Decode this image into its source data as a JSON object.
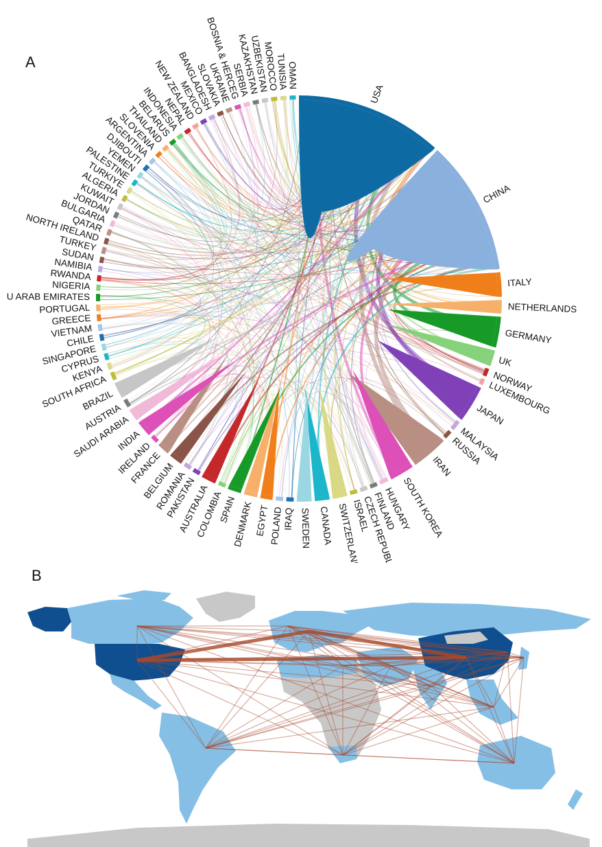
{
  "panels": {
    "a_label": "A",
    "b_label": "B"
  },
  "chord": {
    "countries": [
      {
        "name": "USA",
        "color": "#0e6aa3",
        "w": 24
      },
      {
        "name": "CHINA",
        "color": "#8ab0de",
        "w": 22
      },
      {
        "name": "ITALY",
        "color": "#f07f1b",
        "w": 4
      },
      {
        "name": "NETHERLANDS",
        "color": "#f7b06a",
        "w": 2.2
      },
      {
        "name": "GERMANY",
        "color": "#189a28",
        "w": 5
      },
      {
        "name": "UK",
        "color": "#86d27a",
        "w": 2.6
      },
      {
        "name": "NORWAY",
        "color": "#c4282a",
        "w": 1.3
      },
      {
        "name": "LUXEMBOURG",
        "color": "#f2a3a0",
        "w": 1
      },
      {
        "name": "JAPAN",
        "color": "#8040b8",
        "w": 6
      },
      {
        "name": "MALAYSIA",
        "color": "#c2a9db",
        "w": 1.6
      },
      {
        "name": "RUSSIA",
        "color": "#8b5448",
        "w": 1.3
      },
      {
        "name": "IRAN",
        "color": "#b98f84",
        "w": 6
      },
      {
        "name": "SOUTH KOREA",
        "color": "#dd50b8",
        "w": 4
      },
      {
        "name": "HUNGARY",
        "color": "#f1b9d8",
        "w": 1.4
      },
      {
        "name": "FINLAND",
        "color": "#7b7b7b",
        "w": 1.2
      },
      {
        "name": "CZECH REPUBLIC",
        "color": "#c6c6c6",
        "w": 1.2
      },
      {
        "name": "ISRAEL",
        "color": "#bcbd3a",
        "w": 1.2
      },
      {
        "name": "SWITZERLAND",
        "color": "#d9d985",
        "w": 2.4
      },
      {
        "name": "CANADA",
        "color": "#1bb6c9",
        "w": 2.4
      },
      {
        "name": "SWEDEN",
        "color": "#9ad7e3",
        "w": 2.4
      },
      {
        "name": "IRAQ",
        "color": "#1f70b0",
        "w": 1.2
      },
      {
        "name": "POLAND",
        "color": "#a6c4e6",
        "w": 1.2
      },
      {
        "name": "EGYPT",
        "color": "#f07f1b",
        "w": 2
      },
      {
        "name": "DENMARK",
        "color": "#f7b06a",
        "w": 2.2
      },
      {
        "name": "SPAIN",
        "color": "#189a28",
        "w": 2.2
      },
      {
        "name": "COLOMBIA",
        "color": "#86d27a",
        "w": 1.2
      },
      {
        "name": "AUSTRALIA",
        "color": "#c4282a",
        "w": 2.4
      },
      {
        "name": "PAKISTAN",
        "color": "#8040b8",
        "w": 1.2
      },
      {
        "name": "ROMANIA",
        "color": "#c2a9db",
        "w": 1.2
      },
      {
        "name": "BELGIUM",
        "color": "#8b5448",
        "w": 2.2
      },
      {
        "name": "FRANCE",
        "color": "#b98f84",
        "w": 2
      },
      {
        "name": "IRELAND",
        "color": "#dd50b8",
        "w": 1.2
      },
      {
        "name": "INDIA",
        "color": "#dd50b8",
        "w": 2.6
      },
      {
        "name": "SAUDI ARABIA",
        "color": "#f1b9d8",
        "w": 2
      },
      {
        "name": "AUSTRIA",
        "color": "#7b7b7b",
        "w": 1.3
      },
      {
        "name": "BRAZIL",
        "color": "#c6c6c6",
        "w": 2.6
      },
      {
        "name": "SOUTH AFRICA",
        "color": "#bcbd3a",
        "w": 1.3
      },
      {
        "name": "KENYA",
        "color": "#d9d985",
        "w": 1.1
      },
      {
        "name": "CYPRUS",
        "color": "#1bb6c9",
        "w": 1.1
      },
      {
        "name": "SINGAPORE",
        "color": "#9ad7e3",
        "w": 1.1
      },
      {
        "name": "CHILE",
        "color": "#1f70b0",
        "w": 1.1
      },
      {
        "name": "VIETNAM",
        "color": "#a6c4e6",
        "w": 1.1
      },
      {
        "name": "GREECE",
        "color": "#f07f1b",
        "w": 1.1
      },
      {
        "name": "PORTUGAL",
        "color": "#f7b06a",
        "w": 1.1
      },
      {
        "name": "U ARAB EMIRATES",
        "color": "#189a28",
        "w": 1.2
      },
      {
        "name": "NIGERIA",
        "color": "#86d27a",
        "w": 1
      },
      {
        "name": "RWANDA",
        "color": "#c4282a",
        "w": 1
      },
      {
        "name": "NAMIBIA",
        "color": "#c2a9db",
        "w": 1
      },
      {
        "name": "SUDAN",
        "color": "#8b5448",
        "w": 1
      },
      {
        "name": "TURKEY",
        "color": "#b98f84",
        "w": 1.1
      },
      {
        "name": "NORTH IRELAND",
        "color": "#8b5448",
        "w": 1
      },
      {
        "name": "QATAR",
        "color": "#b98f84",
        "w": 1
      },
      {
        "name": "BULGARIA",
        "color": "#f1b9d8",
        "w": 1
      },
      {
        "name": "JORDAN",
        "color": "#7b7b7b",
        "w": 1
      },
      {
        "name": "KUWAIT",
        "color": "#c6c6c6",
        "w": 1
      },
      {
        "name": "ALGERIA",
        "color": "#bcbd3a",
        "w": 1
      },
      {
        "name": "TURKIYE",
        "color": "#d9d985",
        "w": 1
      },
      {
        "name": "PALESTINE",
        "color": "#1bb6c9",
        "w": 1
      },
      {
        "name": "YEMEN",
        "color": "#9ad7e3",
        "w": 1
      },
      {
        "name": "DJIBOUTI",
        "color": "#1f70b0",
        "w": 1
      },
      {
        "name": "ARGENTINA",
        "color": "#a6c4e6",
        "w": 1
      },
      {
        "name": "SLOVENIA",
        "color": "#f07f1b",
        "w": 1
      },
      {
        "name": "THAILAND",
        "color": "#f7b06a",
        "w": 1
      },
      {
        "name": "BELARUS",
        "color": "#189a28",
        "w": 1
      },
      {
        "name": "INDONESIA",
        "color": "#86d27a",
        "w": 1
      },
      {
        "name": "NEPAL",
        "color": "#c4282a",
        "w": 1
      },
      {
        "name": "NEW ZEALAND",
        "color": "#f2a3a0",
        "w": 1
      },
      {
        "name": "MEXICO",
        "color": "#8040b8",
        "w": 1
      },
      {
        "name": "BANGLADESH",
        "color": "#c2a9db",
        "w": 1
      },
      {
        "name": "SLOVAKIA",
        "color": "#8b5448",
        "w": 1
      },
      {
        "name": "UKRAINE",
        "color": "#b98f84",
        "w": 1
      },
      {
        "name": "BOSNIA & HERCEG",
        "color": "#dd50b8",
        "w": 1
      },
      {
        "name": "SERBIA",
        "color": "#f1b9d8",
        "w": 1
      },
      {
        "name": "KAZAKHSTAN",
        "color": "#7b7b7b",
        "w": 1
      },
      {
        "name": "UZBEKISTAN",
        "color": "#c6c6c6",
        "w": 1
      },
      {
        "name": "MOROCCO",
        "color": "#bcbd3a",
        "w": 1
      },
      {
        "name": "TUNISIA",
        "color": "#d9d985",
        "w": 1
      },
      {
        "name": "OMAN",
        "color": "#1bb6c9",
        "w": 1
      }
    ]
  },
  "map": {
    "colors": {
      "ocean": "#ffffff",
      "land_none": "#c8c8c8",
      "land_low": "#86bfe6",
      "land_high": "#0f4f8f",
      "link": "#a8482a"
    }
  }
}
